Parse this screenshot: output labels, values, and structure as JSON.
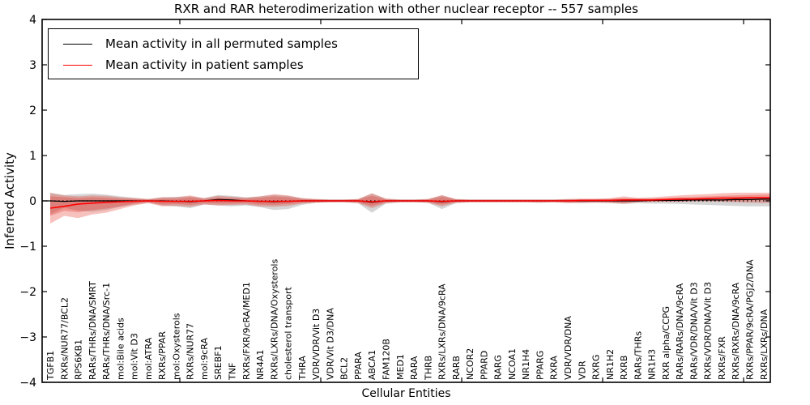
{
  "figure": {
    "title": "RXR and RAR heterodimerization with other nuclear receptor -- 557 samples",
    "xlabel": "Cellular Entities",
    "ylabel": "Inferred Activity"
  },
  "legend": {
    "items": [
      {
        "label": "Mean activity in all permuted samples",
        "color": "#000000"
      },
      {
        "label": "Mean activity in patient samples",
        "color": "#ff0000"
      }
    ]
  },
  "chart_data": {
    "type": "line",
    "title": "RXR and RAR heterodimerization with other nuclear receptor -- 557 samples",
    "xlabel": "Cellular Entities",
    "ylabel": "Inferred Activity",
    "ylim": [
      -4,
      4
    ],
    "yticks": [
      4,
      3,
      2,
      1,
      0,
      -1,
      -2,
      -3,
      -4
    ],
    "grid": false,
    "legend_position": "upper left",
    "zero_line_style": "dotted",
    "categories": [
      "TGFB1",
      "RXRs/NUR77/BCL2",
      "RPS6KB1",
      "RARs/THRs/DNA/SMRT",
      "RARs/THRs/DNA/Src-1",
      "mol:Bile acids",
      "mol:Vit D3",
      "mol:ATRA",
      "RXRs/PPAR",
      "mol:Oxysterols",
      "RXRs/NUR77",
      "mol:9cRA",
      "SREBF1",
      "TNF",
      "RXRs/FXR/9cRA/MED1",
      "NR4A1",
      "RXRs/LXRs/DNA/Oxysterols",
      "cholesterol transport",
      "THRA",
      "VDR/VDR/Vit D3",
      "VDR/Vit D3/DNA",
      "BCL2",
      "PPARA",
      "ABCA1",
      "FAM120B",
      "MED1",
      "RARA",
      "THRB",
      "RXRs/LXRs/DNA/9cRA",
      "RARB",
      "NCOR2",
      "PPARD",
      "RARG",
      "NCOA1",
      "NR1H4",
      "PPARG",
      "RXRA",
      "VDR/VDR/DNA",
      "VDR",
      "RXRG",
      "NR1H2",
      "RXRB",
      "RARs/THRs",
      "NR1H3",
      "RXR alpha/CCPG",
      "RARs/RARs/DNA/9cRA",
      "RARs/VDR/DNA/Vit D3",
      "RXRs/VDR/DNA/Vit D3",
      "RXRs/FXR",
      "RXRs/RXRs/DNA/9cRA",
      "RXRs/PPAR/9cRA/PGJ2/DNA",
      "RXRs/LXRs/DNA"
    ],
    "series": [
      {
        "name": "Mean activity in all permuted samples",
        "color": "#000000",
        "values": [
          0,
          -0.01,
          0,
          0,
          0,
          0,
          0,
          0,
          0,
          -0.01,
          -0.02,
          0,
          0.03,
          0.02,
          0,
          -0.01,
          -0.02,
          -0.01,
          0,
          0,
          0,
          0,
          0,
          -0.03,
          0,
          0,
          0,
          0,
          -0.02,
          0,
          0,
          0,
          0,
          0,
          0,
          0,
          0,
          0,
          0,
          0,
          0,
          0,
          0,
          0.01,
          0.01,
          0.01,
          0.02,
          0.02,
          0.02,
          0.03,
          0.03,
          0.04
        ]
      },
      {
        "name": "Mean activity in patient samples",
        "color": "#ff0000",
        "values": [
          -0.16,
          -0.12,
          -0.07,
          -0.05,
          -0.03,
          -0.02,
          -0.01,
          0,
          -0.01,
          -0.01,
          -0.01,
          0,
          0.01,
          0,
          0,
          -0.01,
          -0.01,
          -0.01,
          0,
          0,
          0,
          0,
          0,
          -0.02,
          0,
          0,
          0,
          0,
          -0.01,
          0,
          0,
          0,
          0,
          0,
          0,
          0,
          0,
          0,
          0.01,
          0.01,
          0.01,
          0.02,
          0.02,
          0.02,
          0.03,
          0.04,
          0.04,
          0.05,
          0.06,
          0.06,
          0.07,
          0.07
        ]
      }
    ],
    "bands": [
      {
        "name": "permuted-range",
        "color": "#888888",
        "opacity": 0.35,
        "lo": [
          -0.3,
          -0.15,
          -0.22,
          -0.24,
          -0.2,
          -0.13,
          -0.08,
          -0.04,
          -0.1,
          -0.12,
          -0.16,
          -0.08,
          -0.1,
          -0.12,
          -0.1,
          -0.14,
          -0.2,
          -0.18,
          -0.09,
          -0.04,
          -0.03,
          -0.03,
          -0.05,
          -0.26,
          -0.06,
          -0.03,
          -0.03,
          -0.04,
          -0.18,
          -0.05,
          -0.03,
          -0.03,
          -0.03,
          -0.03,
          -0.03,
          -0.04,
          -0.03,
          -0.04,
          -0.05,
          -0.04,
          -0.05,
          -0.07,
          -0.05,
          -0.06,
          -0.06,
          -0.07,
          -0.08,
          -0.09,
          -0.1,
          -0.11,
          -0.12,
          -0.12
        ],
        "hi": [
          0.18,
          0.13,
          0.15,
          0.16,
          0.14,
          0.1,
          0.07,
          0.04,
          0.08,
          0.09,
          0.1,
          0.06,
          0.13,
          0.11,
          0.08,
          0.1,
          0.13,
          0.11,
          0.06,
          0.04,
          0.03,
          0.03,
          0.04,
          0.16,
          0.05,
          0.03,
          0.03,
          0.04,
          0.12,
          0.04,
          0.03,
          0.03,
          0.03,
          0.03,
          0.03,
          0.03,
          0.03,
          0.04,
          0.04,
          0.04,
          0.04,
          0.05,
          0.05,
          0.05,
          0.05,
          0.06,
          0.06,
          0.07,
          0.07,
          0.08,
          0.08,
          0.08
        ]
      },
      {
        "name": "patient-range-outer",
        "color": "#e63228",
        "opacity": 0.3,
        "lo": [
          -0.5,
          -0.33,
          -0.38,
          -0.3,
          -0.26,
          -0.18,
          -0.1,
          -0.05,
          -0.12,
          -0.11,
          -0.13,
          -0.08,
          -0.1,
          -0.09,
          -0.08,
          -0.12,
          -0.13,
          -0.11,
          -0.06,
          -0.04,
          -0.03,
          -0.03,
          -0.05,
          -0.16,
          -0.05,
          -0.03,
          -0.03,
          -0.04,
          -0.12,
          -0.04,
          -0.03,
          -0.03,
          -0.03,
          -0.03,
          -0.03,
          -0.04,
          -0.03,
          -0.05,
          -0.04,
          -0.04,
          -0.04,
          -0.06,
          -0.03,
          -0.02,
          -0.02,
          -0.02,
          -0.01,
          -0.01,
          -0.02,
          -0.03,
          -0.04,
          -0.05
        ],
        "hi": [
          0.17,
          0.12,
          0.1,
          0.12,
          0.11,
          0.08,
          0.06,
          0.04,
          0.08,
          0.08,
          0.12,
          0.06,
          0.11,
          0.09,
          0.07,
          0.1,
          0.15,
          0.12,
          0.06,
          0.04,
          0.03,
          0.03,
          0.04,
          0.17,
          0.05,
          0.03,
          0.03,
          0.04,
          0.13,
          0.04,
          0.03,
          0.03,
          0.03,
          0.03,
          0.03,
          0.03,
          0.03,
          0.04,
          0.05,
          0.05,
          0.06,
          0.1,
          0.07,
          0.08,
          0.1,
          0.12,
          0.14,
          0.15,
          0.17,
          0.18,
          0.18,
          0.18
        ]
      },
      {
        "name": "patient-range-inner",
        "color": "#e63228",
        "opacity": 0.3,
        "lo": [
          -0.33,
          -0.22,
          -0.25,
          -0.2,
          -0.17,
          -0.12,
          -0.06,
          -0.03,
          -0.08,
          -0.07,
          -0.09,
          -0.05,
          -0.06,
          -0.06,
          -0.05,
          -0.08,
          -0.09,
          -0.07,
          -0.04,
          -0.03,
          -0.02,
          -0.02,
          -0.03,
          -0.11,
          -0.03,
          -0.02,
          -0.02,
          -0.03,
          -0.08,
          -0.03,
          -0.02,
          -0.02,
          -0.02,
          -0.02,
          -0.02,
          -0.02,
          -0.02,
          -0.03,
          -0.03,
          -0.02,
          -0.03,
          -0.04,
          -0.02,
          -0.01,
          -0.01,
          -0.01,
          0,
          0,
          0,
          0,
          0.01,
          0.01
        ],
        "hi": [
          0.1,
          0.08,
          0.06,
          0.08,
          0.07,
          0.05,
          0.04,
          0.03,
          0.05,
          0.05,
          0.08,
          0.04,
          0.07,
          0.06,
          0.05,
          0.07,
          0.1,
          0.08,
          0.04,
          0.03,
          0.02,
          0.02,
          0.03,
          0.11,
          0.03,
          0.02,
          0.02,
          0.03,
          0.09,
          0.03,
          0.02,
          0.02,
          0.02,
          0.02,
          0.02,
          0.02,
          0.02,
          0.03,
          0.03,
          0.03,
          0.04,
          0.06,
          0.05,
          0.05,
          0.06,
          0.08,
          0.09,
          0.1,
          0.11,
          0.12,
          0.13,
          0.14
        ]
      }
    ]
  }
}
